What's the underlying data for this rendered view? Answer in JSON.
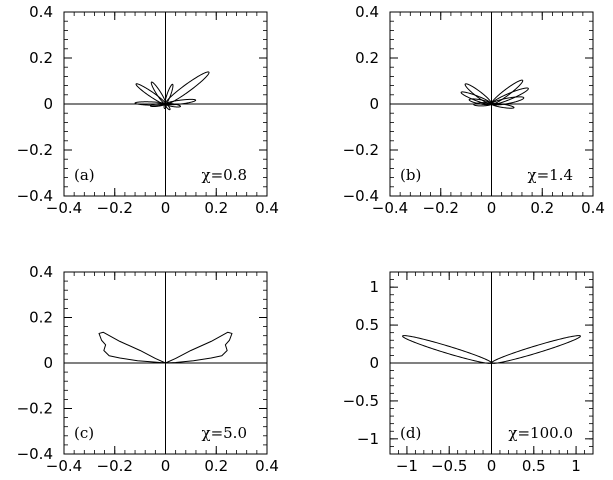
{
  "chart_data": [
    {
      "type": "line",
      "panel_label": "(a)",
      "annotation": "χ=0.8",
      "xlim": [
        -0.4,
        0.4
      ],
      "ylim": [
        -0.4,
        0.4
      ],
      "xticks": [
        -0.4,
        -0.2,
        0,
        0.2,
        0.4
      ],
      "yticks": [
        -0.4,
        -0.2,
        0,
        0.2,
        0.4
      ],
      "xtick_labels": [
        "−0.4",
        "−0.2",
        "0",
        "0.2",
        "0.4"
      ],
      "ytick_labels": [
        "−0.4",
        "−0.2",
        "0",
        "0.2",
        "0.4"
      ],
      "series": [
        {
          "lobes": [
            {
              "angle_deg": 8,
              "length": 0.12,
              "width_frac": 0.14
            },
            {
              "angle_deg": 39,
              "length": 0.22,
              "width_frac": 0.14
            },
            {
              "angle_deg": 72,
              "length": 0.09,
              "width_frac": 0.16
            },
            {
              "angle_deg": 120,
              "length": 0.11,
              "width_frac": 0.16
            },
            {
              "angle_deg": 143,
              "length": 0.145,
              "width_frac": 0.14
            },
            {
              "angle_deg": 178,
              "length": 0.12,
              "width_frac": 0.12
            },
            {
              "angle_deg": 188,
              "length": 0.06,
              "width_frac": 0.18
            },
            {
              "angle_deg": 262,
              "length": 0.02,
              "width_frac": 0.4
            },
            {
              "angle_deg": 305,
              "length": 0.03,
              "width_frac": 0.3
            },
            {
              "angle_deg": 350,
              "length": 0.06,
              "width_frac": 0.2
            }
          ]
        }
      ]
    },
    {
      "type": "line",
      "panel_label": "(b)",
      "annotation": "χ=1.4",
      "xlim": [
        -0.4,
        0.4
      ],
      "ylim": [
        -0.4,
        0.4
      ],
      "xticks": [
        -0.4,
        -0.2,
        0,
        0.2,
        0.4
      ],
      "yticks": [
        -0.4,
        -0.2,
        0,
        0.2,
        0.4
      ],
      "xtick_labels": [
        "−0.4",
        "−0.2",
        "0",
        "0.2",
        "0.4"
      ],
      "ytick_labels": [
        "−0.4",
        "−0.2",
        "0",
        "0.2",
        "0.4"
      ],
      "series": [
        {
          "lobes": [
            {
              "angle_deg": 12,
              "length": 0.13,
              "width_frac": 0.18
            },
            {
              "angle_deg": 25,
              "length": 0.16,
              "width_frac": 0.16
            },
            {
              "angle_deg": 40,
              "length": 0.16,
              "width_frac": 0.16
            },
            {
              "angle_deg": 140,
              "length": 0.135,
              "width_frac": 0.18
            },
            {
              "angle_deg": 157,
              "length": 0.13,
              "width_frac": 0.16
            },
            {
              "angle_deg": 168,
              "length": 0.09,
              "width_frac": 0.2
            },
            {
              "angle_deg": 182,
              "length": 0.07,
              "width_frac": 0.2
            },
            {
              "angle_deg": 350,
              "length": 0.09,
              "width_frac": 0.16
            }
          ]
        }
      ]
    },
    {
      "type": "line",
      "panel_label": "(c)",
      "annotation": "χ=5.0",
      "xlim": [
        -0.4,
        0.4
      ],
      "ylim": [
        -0.4,
        0.4
      ],
      "xticks": [
        -0.4,
        -0.2,
        0,
        0.2,
        0.4
      ],
      "yticks": [
        -0.4,
        -0.2,
        0,
        0.2,
        0.4
      ],
      "xtick_labels": [
        "−0.4",
        "−0.2",
        "0",
        "0.2",
        "0.4"
      ],
      "ytick_labels": [
        "−0.4",
        "−0.2",
        "0",
        "0.2",
        "0.4"
      ],
      "series": [
        {
          "outline": [
            [
              0,
              0
            ],
            [
              0.04,
              0.02
            ],
            [
              0.1,
              0.055
            ],
            [
              0.18,
              0.095
            ],
            [
              0.245,
              0.135
            ],
            [
              0.262,
              0.13
            ],
            [
              0.252,
              0.1
            ],
            [
              0.236,
              0.08
            ],
            [
              0.243,
              0.055
            ],
            [
              0.222,
              0.032
            ],
            [
              0.18,
              0.022
            ],
            [
              0.11,
              0.01
            ],
            [
              0.04,
              0.002
            ],
            [
              0,
              0
            ],
            [
              -0.04,
              0.004
            ],
            [
              -0.11,
              0.01
            ],
            [
              -0.18,
              0.022
            ],
            [
              -0.222,
              0.032
            ],
            [
              -0.243,
              0.055
            ],
            [
              -0.236,
              0.08
            ],
            [
              -0.252,
              0.1
            ],
            [
              -0.262,
              0.13
            ],
            [
              -0.245,
              0.135
            ],
            [
              -0.18,
              0.095
            ],
            [
              -0.1,
              0.055
            ],
            [
              -0.04,
              0.02
            ],
            [
              0,
              0
            ]
          ]
        }
      ]
    },
    {
      "type": "line",
      "panel_label": "(d)",
      "annotation": "χ=100.0",
      "xlim": [
        -1.2,
        1.2
      ],
      "ylim": [
        -1.2,
        1.2
      ],
      "xticks": [
        -1,
        -0.5,
        0,
        0.5,
        1
      ],
      "yticks": [
        -1,
        -0.5,
        0,
        0.5,
        1
      ],
      "xtick_labels": [
        "−1",
        "−0.5",
        "0",
        "0.5",
        "1"
      ],
      "ytick_labels": [
        "−1",
        "−0.5",
        "0",
        "0.5",
        "1"
      ],
      "series": [
        {
          "lobes": [
            {
              "angle_deg": 18.7,
              "length": 1.11,
              "width_frac": 0.085
            },
            {
              "angle_deg": 161.3,
              "length": 1.11,
              "width_frac": 0.085
            }
          ]
        }
      ]
    }
  ]
}
